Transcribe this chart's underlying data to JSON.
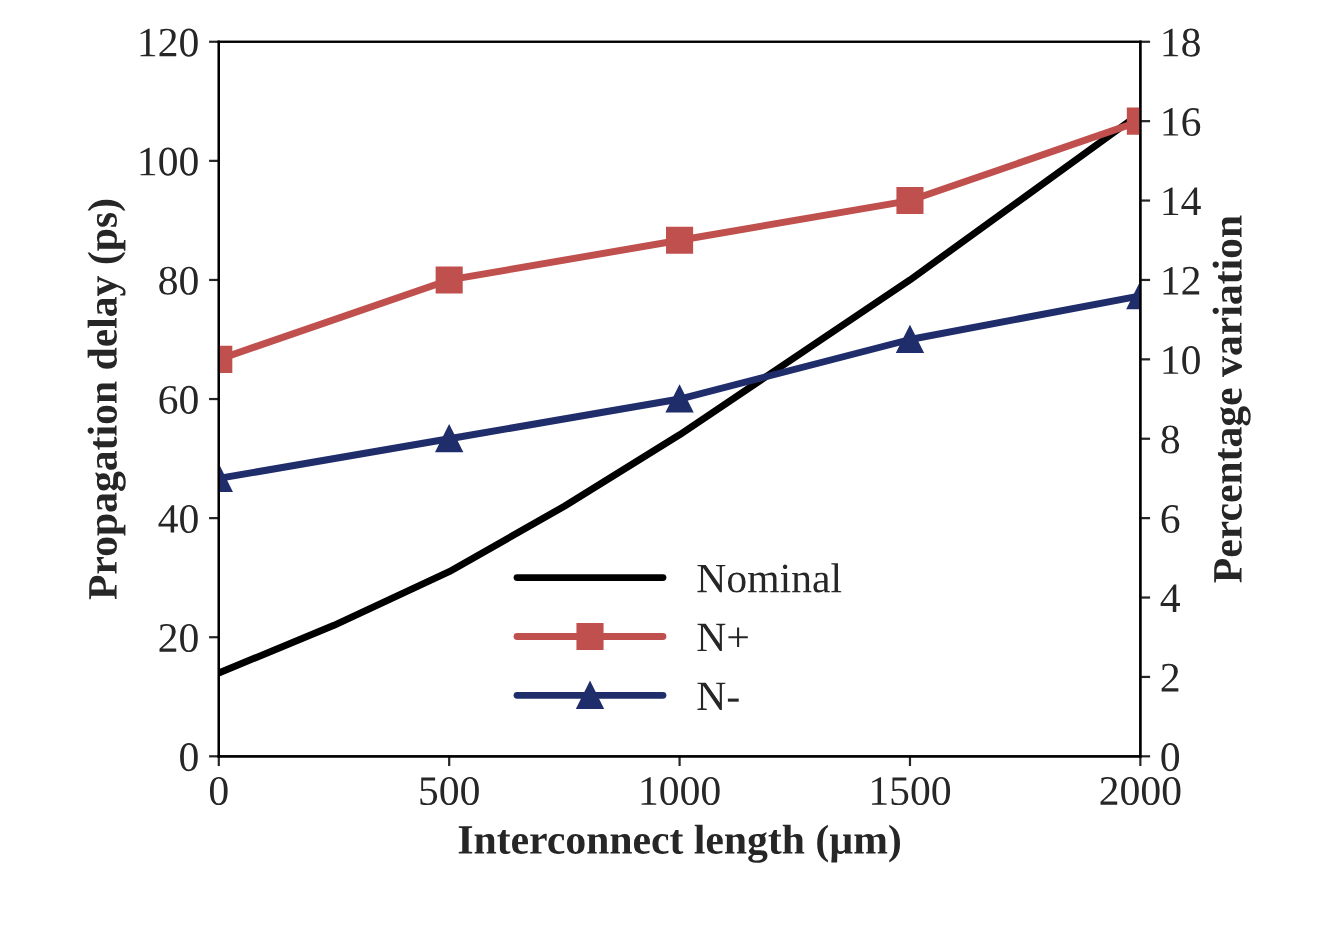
{
  "chart_data": {
    "type": "line",
    "xlabel": "Interconnect length (µm)",
    "ylabel": "Propagation delay (ps)",
    "y2label": "Percentage variation",
    "xlim": [
      0,
      2000
    ],
    "xticks": [
      0,
      500,
      1000,
      1500,
      2000
    ],
    "ylim": [
      0,
      120
    ],
    "yticks": [
      0,
      20,
      40,
      60,
      80,
      100,
      120
    ],
    "y2lim": [
      0,
      18
    ],
    "y2ticks": [
      0,
      2,
      4,
      6,
      8,
      10,
      12,
      14,
      16,
      18
    ],
    "grid": false,
    "legend": "bottom",
    "line_style": "solid",
    "series": [
      {
        "name": "Nominal",
        "color": "#000000",
        "marker": "none",
        "x": [
          0,
          250,
          500,
          750,
          1000,
          1250,
          1500,
          1750,
          2000
        ],
        "values": [
          14,
          22,
          31,
          42,
          54,
          67,
          80,
          94,
          108
        ]
      },
      {
        "name": "N+",
        "color": "#c0504d",
        "marker": "square",
        "axis": "y2",
        "x": [
          0,
          500,
          1000,
          1500,
          2000
        ],
        "values": [
          10,
          12,
          13,
          14,
          16
        ]
      },
      {
        "name": "N-",
        "color": "#1f2d6b",
        "marker": "triangle",
        "axis": "y2",
        "x": [
          0,
          500,
          1000,
          1500,
          2000
        ],
        "values": [
          7,
          8,
          9,
          10.5,
          11.6
        ]
      }
    ]
  }
}
